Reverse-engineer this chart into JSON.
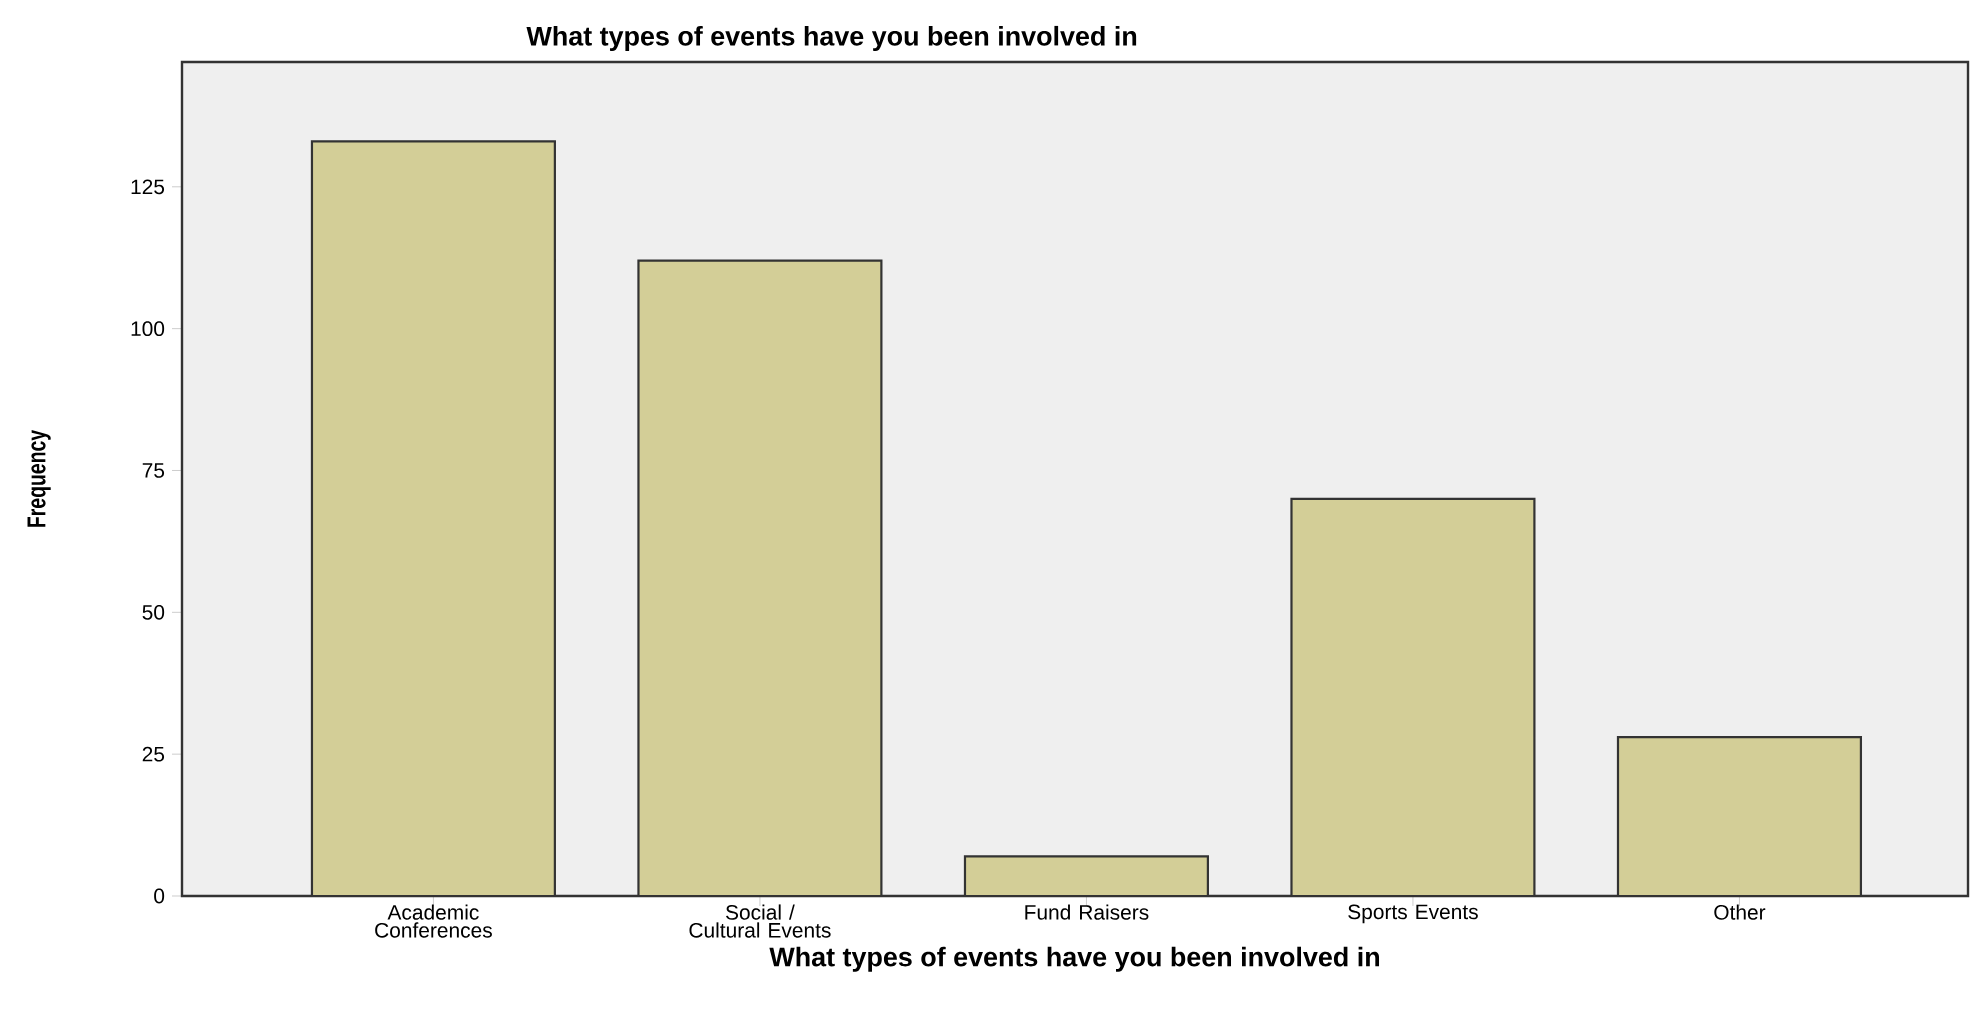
{
  "chart_data": {
    "type": "bar",
    "title": "What types of events have you been involved in",
    "xlabel": "What types of events have you been involved in",
    "ylabel": "Frequency",
    "categories": [
      "Academic Conferences",
      "Social / Cultural Events",
      "Fund Raisers",
      "Sports Events",
      "Other"
    ],
    "values": [
      133,
      112,
      7,
      70,
      28
    ],
    "color": "#d3ce97",
    "ylim": [
      0,
      147
    ],
    "yticks": [
      0,
      25,
      50,
      75,
      100,
      125
    ],
    "grid": false
  }
}
